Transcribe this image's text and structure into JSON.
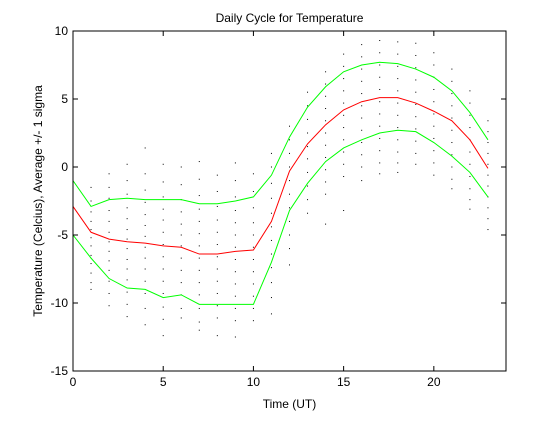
{
  "chart_data": {
    "type": "line",
    "title": "Daily Cycle for Temperature",
    "xlabel": "Time (UT)",
    "ylabel": "Temperature (Celcius), Average +/- 1 sigma",
    "xlim": [
      0,
      24
    ],
    "ylim": [
      -15,
      10
    ],
    "xticks": [
      0,
      5,
      10,
      15,
      20
    ],
    "yticks": [
      -15,
      -10,
      -5,
      0,
      5,
      10
    ],
    "grid": false,
    "x": [
      0,
      1,
      2,
      3,
      4,
      5,
      6,
      7,
      8,
      9,
      10,
      11,
      12,
      13,
      14,
      15,
      16,
      17,
      18,
      19,
      20,
      21,
      22,
      23
    ],
    "series": [
      {
        "color": "#00ff00",
        "values": [
          -1.0,
          -2.9,
          -2.4,
          -2.3,
          -2.4,
          -2.4,
          -2.4,
          -2.7,
          -2.7,
          -2.5,
          -2.2,
          -0.6,
          2.2,
          4.4,
          5.9,
          7.0,
          7.5,
          7.7,
          7.6,
          7.2,
          6.6,
          5.6,
          4.0,
          2.0
        ]
      },
      {
        "color": "#ff0000",
        "values": [
          -2.9,
          -4.8,
          -5.3,
          -5.5,
          -5.6,
          -5.8,
          -5.9,
          -6.4,
          -6.4,
          -6.2,
          -6.1,
          -4.0,
          -0.3,
          1.7,
          3.1,
          4.2,
          4.8,
          5.1,
          5.1,
          4.7,
          4.1,
          3.4,
          2.0,
          -0.1
        ]
      },
      {
        "color": "#00ff00",
        "values": [
          -5.0,
          -6.7,
          -8.2,
          -8.9,
          -9.0,
          -9.6,
          -9.4,
          -10.1,
          -10.1,
          -10.1,
          -10.1,
          -7.0,
          -3.2,
          -1.2,
          0.4,
          1.4,
          2.0,
          2.5,
          2.7,
          2.6,
          1.8,
          0.8,
          -0.4,
          -2.2
        ]
      }
    ],
    "scatter_columns": [
      {
        "x": 0,
        "y": [
          -1.5,
          -2.0,
          -2.6,
          -3.0,
          -3.4,
          -3.9,
          -4.3,
          -4.8
        ]
      },
      {
        "x": 1,
        "y": [
          -1.5,
          -2.5,
          -3.3,
          -4.0,
          -4.6,
          -5.2,
          -5.8,
          -6.5,
          -7.1,
          -7.8,
          -8.5,
          -9.0
        ]
      },
      {
        "x": 2,
        "y": [
          -0.5,
          -1.5,
          -2.3,
          -3.2,
          -4.0,
          -4.8,
          -5.5,
          -6.2,
          -6.9,
          -7.6,
          -8.4,
          -9.3,
          -10.2
        ]
      },
      {
        "x": 3,
        "y": [
          0.2,
          -1.0,
          -2.0,
          -3.0,
          -3.8,
          -4.6,
          -5.3,
          -6.0,
          -6.8,
          -7.5,
          -8.3,
          -9.2,
          -10.1,
          -11.0
        ]
      },
      {
        "x": 4,
        "y": [
          1.4,
          -0.5,
          -1.7,
          -2.6,
          -3.5,
          -4.3,
          -5.1,
          -5.9,
          -6.7,
          -7.5,
          -8.4,
          -9.3,
          -10.4,
          -11.6
        ]
      },
      {
        "x": 5,
        "y": [
          0.2,
          -1.1,
          -2.2,
          -3.1,
          -3.9,
          -4.8,
          -5.7,
          -6.6,
          -7.5,
          -8.4,
          -9.3,
          -10.3,
          -11.2,
          -12.4
        ]
      },
      {
        "x": 6,
        "y": [
          0.0,
          -1.3,
          -2.4,
          -3.3,
          -4.2,
          -5.0,
          -5.8,
          -6.7,
          -7.6,
          -8.5,
          -9.4,
          -10.4,
          -11.1
        ]
      },
      {
        "x": 7,
        "y": [
          0.4,
          -0.9,
          -2.1,
          -3.1,
          -4.0,
          -4.9,
          -5.8,
          -6.7,
          -7.6,
          -8.5,
          -9.4,
          -10.4,
          -11.4,
          -12.0
        ]
      },
      {
        "x": 8,
        "y": [
          -0.6,
          -1.8,
          -2.9,
          -3.9,
          -4.8,
          -5.7,
          -6.6,
          -7.5,
          -8.4,
          -9.3,
          -10.2,
          -11.1,
          -12.4
        ]
      },
      {
        "x": 9,
        "y": [
          0.3,
          -1.0,
          -2.2,
          -3.2,
          -4.1,
          -5.0,
          -5.9,
          -6.8,
          -7.7,
          -8.6,
          -9.5,
          -10.4,
          -11.3,
          -12.5
        ]
      },
      {
        "x": 10,
        "y": [
          -0.5,
          -1.8,
          -3.0,
          -4.1,
          -5.0,
          -5.9,
          -6.8,
          -7.7,
          -8.6,
          -9.5,
          -10.4,
          -11.3
        ]
      },
      {
        "x": 11,
        "y": [
          1.0,
          0.0,
          -1.2,
          -2.3,
          -3.4,
          -4.4,
          -5.4,
          -6.4,
          -7.4,
          -8.5,
          -9.6,
          -10.8
        ]
      },
      {
        "x": 12,
        "y": [
          3.0,
          2.0,
          1.0,
          0.0,
          -1.0,
          -2.0,
          -3.0,
          -4.0,
          -5.0,
          -6.0,
          -7.2
        ]
      },
      {
        "x": 13,
        "y": [
          5.5,
          4.5,
          3.5,
          2.5,
          1.5,
          0.6,
          -0.4,
          -1.4,
          -2.4,
          -3.4
        ]
      },
      {
        "x": 14,
        "y": [
          7.0,
          6.1,
          5.2,
          4.3,
          3.4,
          2.5,
          1.6,
          0.7,
          -0.2,
          -1.1,
          -2.0,
          -4.2
        ]
      },
      {
        "x": 15,
        "y": [
          8.3,
          7.4,
          6.5,
          5.6,
          4.7,
          3.8,
          2.9,
          2.0,
          1.1,
          0.2,
          -0.7,
          -3.2
        ]
      },
      {
        "x": 16,
        "y": [
          9.0,
          8.1,
          7.2,
          6.3,
          5.4,
          4.5,
          3.6,
          2.7,
          1.8,
          0.9,
          0.0,
          -1.0
        ]
      },
      {
        "x": 17,
        "y": [
          9.3,
          8.4,
          7.5,
          6.6,
          5.7,
          4.8,
          3.9,
          3.0,
          2.1,
          1.2,
          0.3,
          -0.5
        ]
      },
      {
        "x": 18,
        "y": [
          9.2,
          8.3,
          7.4,
          6.5,
          5.6,
          4.7,
          3.8,
          2.9,
          2.0,
          1.1,
          0.3,
          -0.4
        ]
      },
      {
        "x": 19,
        "y": [
          9.1,
          8.2,
          7.3,
          6.4,
          5.5,
          4.6,
          3.7,
          2.8,
          1.9,
          1.0,
          0.2
        ]
      },
      {
        "x": 20,
        "y": [
          8.4,
          7.5,
          6.6,
          5.7,
          4.8,
          3.9,
          3.0,
          2.1,
          1.2,
          0.3,
          -0.6
        ]
      },
      {
        "x": 21,
        "y": [
          7.2,
          6.3,
          5.4,
          4.5,
          3.6,
          2.7,
          1.8,
          0.9,
          0.0,
          -0.9,
          -1.6
        ]
      },
      {
        "x": 22,
        "y": [
          5.6,
          4.7,
          3.8,
          2.9,
          2.0,
          1.1,
          0.2,
          -0.7,
          -1.6,
          -2.4,
          -3.1
        ]
      },
      {
        "x": 23,
        "y": [
          3.4,
          2.6,
          1.8,
          1.0,
          0.2,
          -0.6,
          -1.4,
          -2.2,
          -3.0,
          -3.8,
          -4.6
        ]
      }
    ]
  }
}
